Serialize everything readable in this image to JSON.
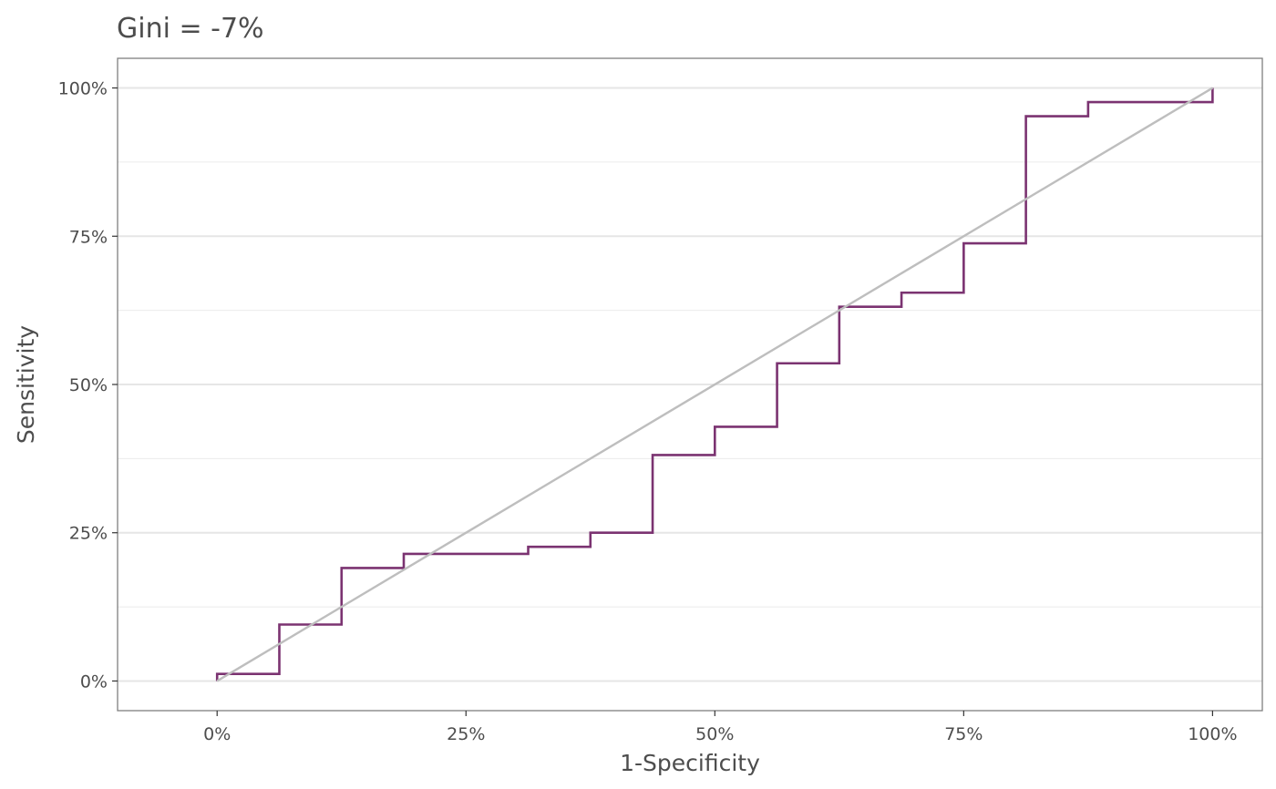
{
  "chart_data": {
    "type": "line",
    "title": "Gini = -7%",
    "xlabel": "1-Specificity",
    "ylabel": "Sensitivity",
    "xlim": [
      -0.1,
      1.05
    ],
    "ylim": [
      -0.05,
      1.05
    ],
    "x_ticks": [
      0,
      0.25,
      0.5,
      0.75,
      1.0
    ],
    "x_tick_labels": [
      "0%",
      "25%",
      "50%",
      "75%",
      "100%"
    ],
    "y_ticks": [
      0,
      0.25,
      0.5,
      0.75,
      1.0
    ],
    "y_tick_labels": [
      "0%",
      "25%",
      "50%",
      "75%",
      "100%"
    ],
    "grid": true,
    "series": [
      {
        "color": "#7b3371",
        "style": "step",
        "x": [
          0,
          0,
          0.0625,
          0.0625,
          0.125,
          0.125,
          0.1875,
          0.1875,
          0.3125,
          0.3125,
          0.375,
          0.375,
          0.4375,
          0.4375,
          0.5,
          0.5,
          0.5625,
          0.5625,
          0.625,
          0.625,
          0.6875,
          0.6875,
          0.75,
          0.75,
          0.8125,
          0.8125,
          0.875,
          0.875,
          1.0,
          1.0
        ],
        "y": [
          0,
          0.0119,
          0.0119,
          0.0952,
          0.0952,
          0.1905,
          0.1905,
          0.2143,
          0.2143,
          0.2262,
          0.2262,
          0.25,
          0.25,
          0.381,
          0.381,
          0.4286,
          0.4286,
          0.5357,
          0.5357,
          0.631,
          0.631,
          0.6548,
          0.6548,
          0.7381,
          0.7381,
          0.9524,
          0.9524,
          0.9762,
          0.9762,
          1.0
        ]
      },
      {
        "color": "#bebebe",
        "style": "line",
        "x": [
          0,
          1
        ],
        "y": [
          0,
          1
        ]
      }
    ]
  }
}
